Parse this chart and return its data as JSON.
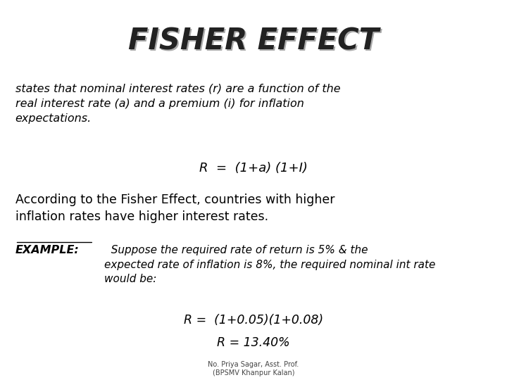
{
  "title": "FISHER EFFECT",
  "background_color": "#ffffff",
  "text_color": "#000000",
  "para1": "states that nominal interest rates (r) are a function of the\nreal interest rate (a) and a premium (i) for inflation\nexpectations.",
  "formula1": "R  =  (1+a) (1+I)",
  "para2": "According to the Fisher Effect, countries with higher\ninflation rates have higher interest rates.",
  "example_label": "EXAMPLE:",
  "example_text": "  Suppose the required rate of return is 5% & the\nexpected rate of inflation is 8%, the required nominal int rate\nwould be:",
  "formula2": "R =  (1+0.05)(1+0.08)",
  "formula3": "R = 13.40%",
  "footer_line1": "No. Priya Sagar, Asst. Prof.",
  "footer_line2": "(BPSMV Khanpur Kalan)"
}
